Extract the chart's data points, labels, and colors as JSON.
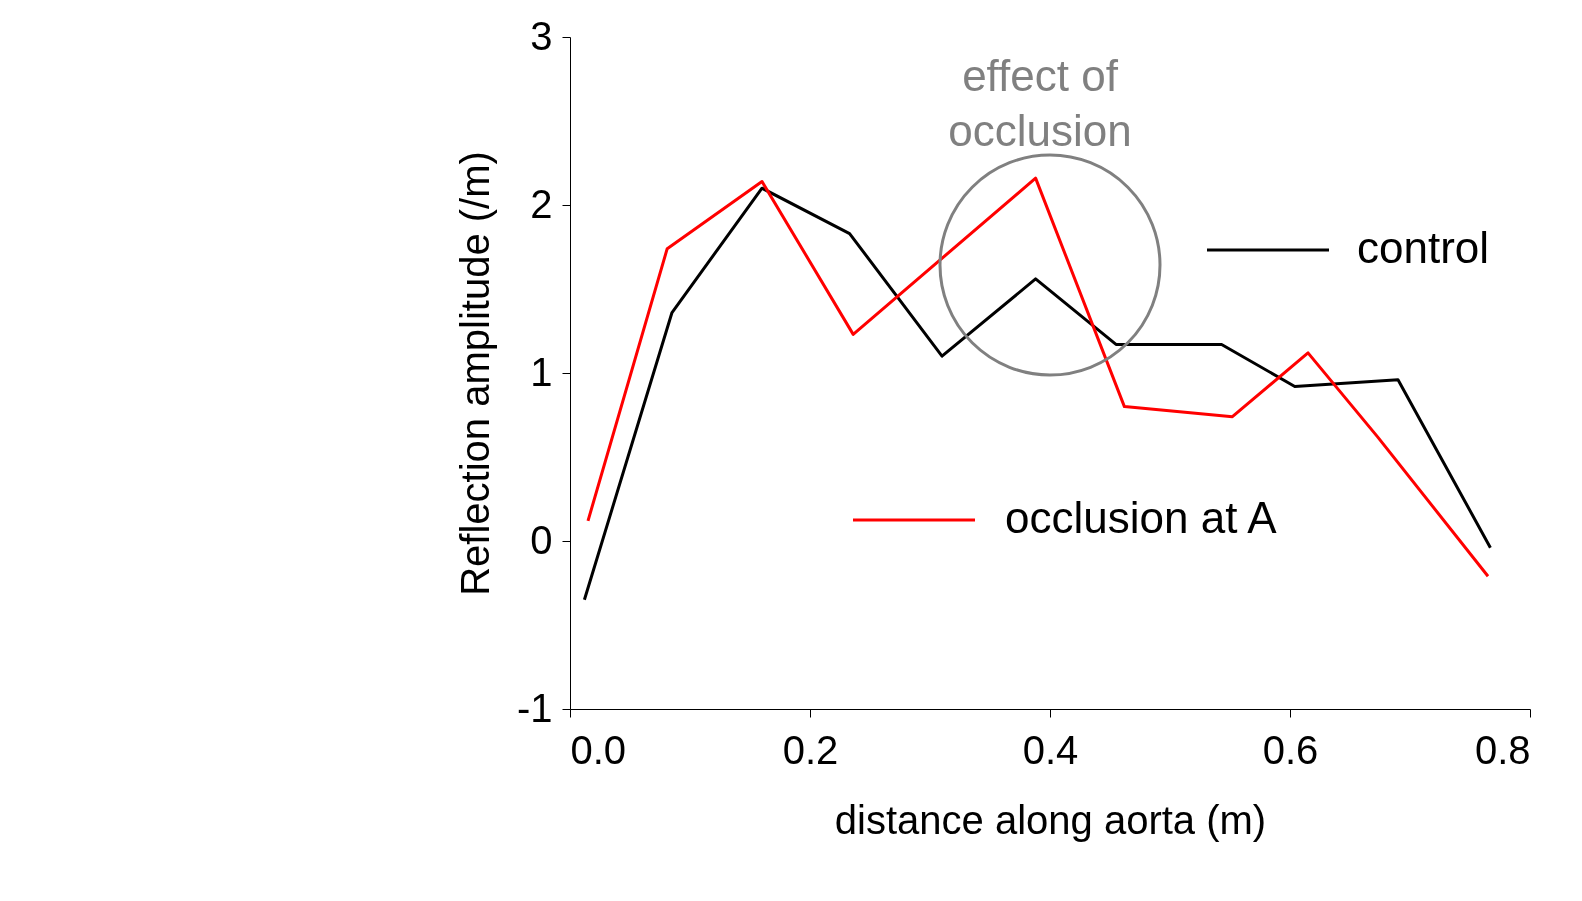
{
  "chart_data": {
    "type": "line",
    "xlabel": "distance along aorta (m)",
    "ylabel": "Reflection amplitude (/m)",
    "series": [
      {
        "name": "control",
        "color": "#000000",
        "x": [
          0.012,
          0.085,
          0.16,
          0.233,
          0.31,
          0.388,
          0.455,
          0.543,
          0.604,
          0.69,
          0.767
        ],
        "values": [
          -0.35,
          1.36,
          2.1,
          1.83,
          1.1,
          1.56,
          1.17,
          1.17,
          0.92,
          0.96,
          -0.04
        ]
      },
      {
        "name": "occlusion at A",
        "color": "#ff0000",
        "x": [
          0.015,
          0.081,
          0.16,
          0.236,
          0.388,
          0.462,
          0.552,
          0.615,
          0.673,
          0.765
        ],
        "values": [
          0.12,
          1.74,
          2.14,
          1.23,
          2.16,
          0.8,
          0.74,
          1.12,
          0.62,
          -0.21
        ]
      }
    ],
    "xlim": [
      0,
      0.8
    ],
    "xticks": [
      {
        "value": 0,
        "label": "0.0"
      },
      0.2,
      0.4,
      0.6,
      0.8
    ],
    "ylim": [
      -1,
      3
    ],
    "yticks": [
      -1,
      0,
      1,
      2,
      3
    ],
    "annotations": [
      "effect of occlusion"
    ],
    "grid": false,
    "legend": "right",
    "marker": "none",
    "line_style": "solid"
  }
}
